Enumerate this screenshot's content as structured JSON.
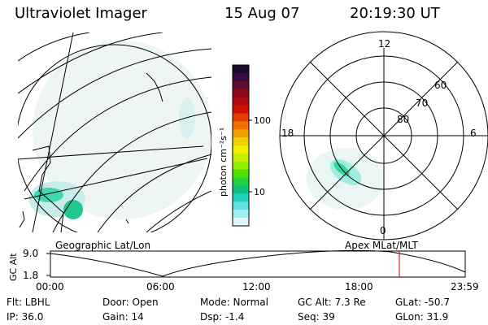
{
  "header": {
    "instrument": "Ultraviolet Imager",
    "date": "15 Aug 07",
    "time": "20:19:30 UT"
  },
  "colorbar": {
    "unit_label": "photon cm⁻²s⁻¹",
    "ticks": [
      "100",
      "10"
    ],
    "colors": [
      "#1a0a30",
      "#3a0a40",
      "#600a30",
      "#8b0a20",
      "#b00a10",
      "#d01000",
      "#e04000",
      "#f07000",
      "#f0a000",
      "#f0d000",
      "#f0f000",
      "#c8f000",
      "#90f000",
      "#50e000",
      "#20d040",
      "#10c080",
      "#20d0c0",
      "#60e0e0",
      "#a0f0f0",
      "#e0f8f8"
    ]
  },
  "polar": {
    "mlt_labels": {
      "top": "12",
      "left": "18",
      "right": "6",
      "bottom": "0"
    },
    "lat_labels": [
      "60",
      "70",
      "80"
    ]
  },
  "map_captions": {
    "left": "Geographic Lat/Lon",
    "right": "Apex MLat/MLT"
  },
  "timeline": {
    "ylabel": "GC Alt",
    "y_ticks": [
      "9.0",
      "1.8"
    ],
    "x_ticks": [
      "00:00",
      "06:00",
      "12:00",
      "18:00",
      "23:59"
    ],
    "marker_time": "20:19:30"
  },
  "info": {
    "flt": "Flt: LBHL",
    "ip": "IP: 36.0",
    "door": "Door: Open",
    "gain": "Gain: 14",
    "mode": "Mode: Normal",
    "dsp": "Dsp:    -1.4",
    "gcalt": "GC Alt: 7.3 Re",
    "seq": "Seq: 39",
    "glat": "GLat: -50.7",
    "glon": "GLon:  31.9"
  }
}
